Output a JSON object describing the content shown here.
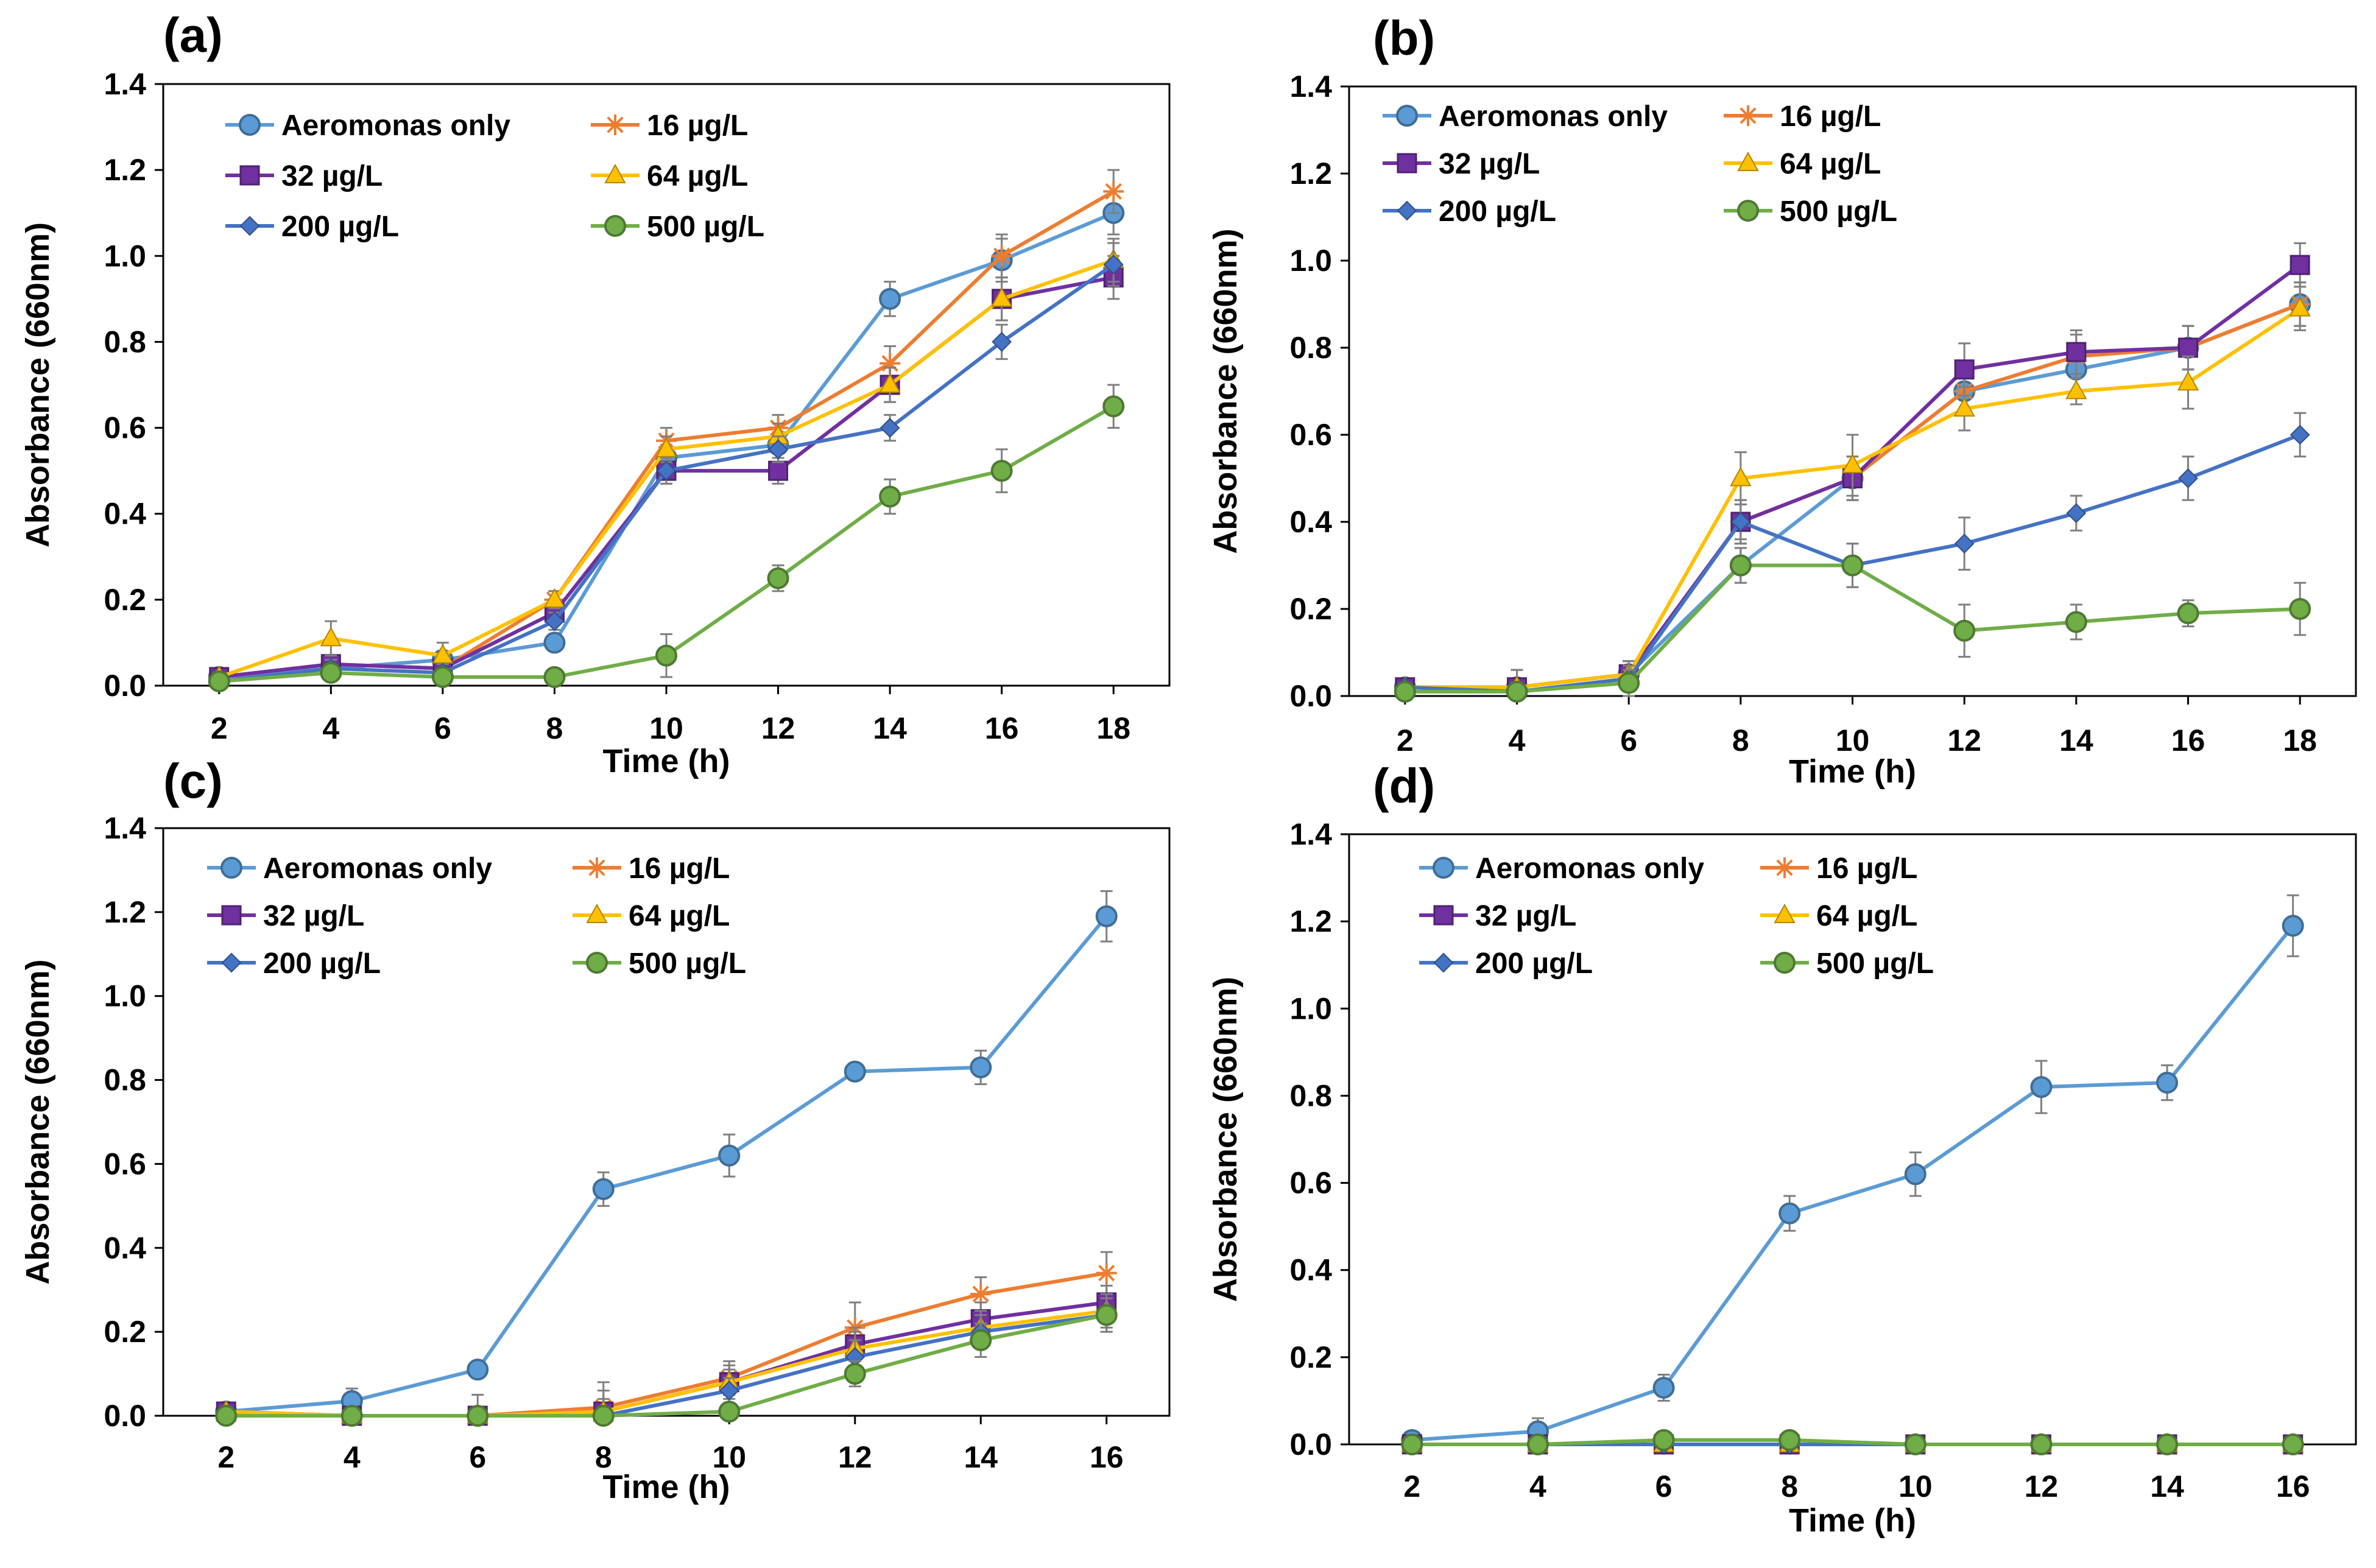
{
  "chart_data": [
    {
      "type": "line",
      "panel_label": "(a)",
      "xlabel": "Time (h)",
      "ylabel": "Absorbance (660nm)",
      "x": [
        2,
        4,
        6,
        8,
        10,
        12,
        14,
        16,
        18
      ],
      "x_ticks": [
        "2",
        "4",
        "6",
        "8",
        "10",
        "12",
        "14",
        "16",
        "18"
      ],
      "y_ticks": [
        "0.0",
        "0.2",
        "0.4",
        "0.6",
        "0.8",
        "1.0",
        "1.2",
        "1.4"
      ],
      "ylim": [
        0,
        1.4
      ],
      "series": [
        {
          "name": "Aeromonas only",
          "color": "#5B9BD5",
          "marker": "circle",
          "values": [
            0.02,
            0.04,
            0.06,
            0.1,
            0.53,
            0.56,
            0.9,
            0.99,
            1.1
          ],
          "errors": [
            0.01,
            0.02,
            0.02,
            0.02,
            0.03,
            0.03,
            0.04,
            0.05,
            0.05
          ]
        },
        {
          "name": "16 µg/L",
          "color": "#ED7D31",
          "marker": "star",
          "values": [
            0.02,
            0.05,
            0.04,
            0.2,
            0.57,
            0.6,
            0.75,
            1.0,
            1.15
          ],
          "errors": [
            0.01,
            0.02,
            0.02,
            0.02,
            0.03,
            0.03,
            0.04,
            0.05,
            0.05
          ]
        },
        {
          "name": "32 µg/L",
          "color": "#7030A0",
          "marker": "square",
          "values": [
            0.02,
            0.05,
            0.04,
            0.17,
            0.5,
            0.5,
            0.7,
            0.9,
            0.95
          ],
          "errors": [
            0.01,
            0.02,
            0.02,
            0.02,
            0.03,
            0.03,
            0.04,
            0.05,
            0.05
          ]
        },
        {
          "name": "64 µg/L",
          "color": "#FFC000",
          "marker": "triangle",
          "values": [
            0.02,
            0.11,
            0.07,
            0.2,
            0.55,
            0.58,
            0.7,
            0.9,
            0.99
          ],
          "errors": [
            0.01,
            0.04,
            0.03,
            0.02,
            0.03,
            0.03,
            0.04,
            0.05,
            0.05
          ]
        },
        {
          "name": "200 µg/L",
          "color": "#4472C4",
          "marker": "diamond",
          "values": [
            0.01,
            0.04,
            0.03,
            0.15,
            0.5,
            0.55,
            0.6,
            0.8,
            0.98
          ],
          "errors": [
            0.01,
            0.02,
            0.02,
            0.02,
            0.03,
            0.03,
            0.03,
            0.04,
            0.05
          ]
        },
        {
          "name": "500 µg/L",
          "color": "#70AD47",
          "marker": "circle",
          "values": [
            0.01,
            0.03,
            0.02,
            0.02,
            0.07,
            0.25,
            0.44,
            0.5,
            0.65
          ],
          "errors": [
            0.01,
            0.01,
            0.01,
            0.01,
            0.05,
            0.03,
            0.04,
            0.05,
            0.05
          ]
        }
      ]
    },
    {
      "type": "line",
      "panel_label": "(b)",
      "xlabel": "Time (h)",
      "ylabel": "Absorbance (660nm)",
      "x": [
        2,
        4,
        6,
        8,
        10,
        12,
        14,
        16,
        18
      ],
      "x_ticks": [
        "2",
        "4",
        "6",
        "8",
        "10",
        "12",
        "14",
        "16",
        "18"
      ],
      "y_ticks": [
        "0.0",
        "0.2",
        "0.4",
        "0.6",
        "0.8",
        "1.0",
        "1.2",
        "1.4"
      ],
      "ylim": [
        0,
        1.4
      ],
      "series": [
        {
          "name": "Aeromonas only",
          "color": "#5B9BD5",
          "marker": "circle",
          "values": [
            0.02,
            0.02,
            0.05,
            0.3,
            0.5,
            0.7,
            0.75,
            0.8,
            0.9
          ],
          "errors": [
            0.01,
            0.04,
            0.03,
            0.04,
            0.05,
            0.05,
            0.05,
            0.05,
            0.05
          ]
        },
        {
          "name": "16  µg/L",
          "color": "#ED7D31",
          "marker": "star",
          "values": [
            0.02,
            0.02,
            0.05,
            0.4,
            0.5,
            0.7,
            0.78,
            0.8,
            0.9
          ],
          "errors": [
            0.01,
            0.04,
            0.03,
            0.04,
            0.05,
            0.05,
            0.05,
            0.05,
            0.05
          ]
        },
        {
          "name": "32 µg/L",
          "color": "#7030A0",
          "marker": "square",
          "values": [
            0.02,
            0.02,
            0.05,
            0.4,
            0.5,
            0.75,
            0.79,
            0.8,
            0.99
          ],
          "errors": [
            0.01,
            0.04,
            0.03,
            0.05,
            0.05,
            0.06,
            0.05,
            0.05,
            0.05
          ]
        },
        {
          "name": "64 µg/L",
          "color": "#FFC000",
          "marker": "triangle",
          "values": [
            0.02,
            0.02,
            0.05,
            0.5,
            0.53,
            0.66,
            0.7,
            0.72,
            0.89
          ],
          "errors": [
            0.01,
            0.04,
            0.03,
            0.06,
            0.07,
            0.05,
            0.03,
            0.06,
            0.05
          ]
        },
        {
          "name": "200 µg/L",
          "color": "#4472C4",
          "marker": "diamond",
          "values": [
            0.02,
            0.01,
            0.04,
            0.4,
            0.3,
            0.35,
            0.42,
            0.5,
            0.6
          ],
          "errors": [
            0.01,
            0.02,
            0.03,
            0.05,
            0.05,
            0.06,
            0.04,
            0.05,
            0.05
          ]
        },
        {
          "name": "500 µg/L",
          "color": "#70AD47",
          "marker": "circle",
          "values": [
            0.01,
            0.01,
            0.03,
            0.3,
            0.3,
            0.15,
            0.17,
            0.19,
            0.2
          ],
          "errors": [
            0.01,
            0.02,
            0.03,
            0.04,
            0.05,
            0.06,
            0.04,
            0.03,
            0.06
          ]
        }
      ]
    },
    {
      "type": "line",
      "panel_label": "(c)",
      "xlabel": "Time (h)",
      "ylabel": "Absorbance (660nm)",
      "x": [
        2,
        4,
        6,
        8,
        10,
        12,
        14,
        16
      ],
      "x_ticks": [
        "2",
        "4",
        "6",
        "8",
        "10",
        "12",
        "14",
        "16"
      ],
      "y_ticks": [
        "0.0",
        "0.2",
        "0.4",
        "0.6",
        "0.8",
        "1.0",
        "1.2",
        "1.4"
      ],
      "ylim": [
        0,
        1.4
      ],
      "series": [
        {
          "name": "Aeromonas only",
          "color": "#5B9BD5",
          "marker": "circle",
          "values": [
            0.01,
            0.035,
            0.11,
            0.54,
            0.62,
            0.82,
            0.83,
            1.19
          ],
          "errors": [
            0.01,
            0.03,
            0.02,
            0.04,
            0.05,
            0.01,
            0.04,
            0.06
          ]
        },
        {
          "name": "16 µg/L",
          "color": "#ED7D31",
          "marker": "star",
          "values": [
            0.01,
            0.0,
            0.0,
            0.02,
            0.09,
            0.21,
            0.29,
            0.34
          ],
          "errors": [
            0.01,
            0.01,
            0.05,
            0.06,
            0.04,
            0.06,
            0.04,
            0.05
          ]
        },
        {
          "name": "32 µg/L",
          "color": "#7030A0",
          "marker": "square",
          "values": [
            0.01,
            0.0,
            0.0,
            0.01,
            0.08,
            0.17,
            0.23,
            0.27
          ],
          "errors": [
            0.01,
            0.01,
            0.02,
            0.05,
            0.04,
            0.04,
            0.04,
            0.04
          ]
        },
        {
          "name": "64 µg/L",
          "color": "#FFC000",
          "marker": "triangle",
          "values": [
            0.01,
            0.0,
            0.0,
            0.01,
            0.08,
            0.16,
            0.21,
            0.25
          ],
          "errors": [
            0.01,
            0.01,
            0.01,
            0.03,
            0.03,
            0.04,
            0.04,
            0.04
          ]
        },
        {
          "name": "200 µg/L",
          "color": "#4472C4",
          "marker": "diamond",
          "values": [
            0.0,
            0.0,
            0.0,
            0.0,
            0.06,
            0.14,
            0.2,
            0.24
          ],
          "errors": [
            0.01,
            0.01,
            0.01,
            0.01,
            0.03,
            0.04,
            0.04,
            0.04
          ]
        },
        {
          "name": "500 µg/L",
          "color": "#70AD47",
          "marker": "circle",
          "values": [
            0.0,
            0.0,
            0.0,
            0.0,
            0.01,
            0.1,
            0.18,
            0.24
          ],
          "errors": [
            0.01,
            0.01,
            0.01,
            0.01,
            0.02,
            0.03,
            0.04,
            0.04
          ]
        }
      ]
    },
    {
      "type": "line",
      "panel_label": "(d)",
      "xlabel": "Time (h)",
      "ylabel": "Absorbance (660nm)",
      "x": [
        2,
        4,
        6,
        8,
        10,
        12,
        14,
        16
      ],
      "x_ticks": [
        "2",
        "4",
        "6",
        "8",
        "10",
        "12",
        "14",
        "16"
      ],
      "y_ticks": [
        "0.0",
        "0.2",
        "0.4",
        "0.6",
        "0.8",
        "1.0",
        "1.2",
        "1.4"
      ],
      "ylim": [
        0,
        1.4
      ],
      "series": [
        {
          "name": "Aeromonas only",
          "color": "#5B9BD5",
          "marker": "circle",
          "values": [
            0.01,
            0.03,
            0.13,
            0.53,
            0.62,
            0.82,
            0.83,
            1.19
          ],
          "errors": [
            0.01,
            0.03,
            0.03,
            0.04,
            0.05,
            0.06,
            0.04,
            0.07
          ]
        },
        {
          "name": "16 µg/L",
          "color": "#ED7D31",
          "marker": "star",
          "values": [
            0.0,
            0.0,
            0.0,
            0.0,
            0.0,
            0.0,
            0.0,
            0.0
          ],
          "errors": [
            0.01,
            0.01,
            0.01,
            0.01,
            0.01,
            0.01,
            0.01,
            0.01
          ]
        },
        {
          "name": "32 µg/L",
          "color": "#7030A0",
          "marker": "square",
          "values": [
            0.0,
            0.0,
            0.0,
            0.0,
            0.0,
            0.0,
            0.0,
            0.0
          ],
          "errors": [
            0.01,
            0.01,
            0.01,
            0.01,
            0.01,
            0.01,
            0.01,
            0.01
          ]
        },
        {
          "name": "64 µg/L",
          "color": "#FFC000",
          "marker": "triangle",
          "values": [
            0.0,
            0.0,
            0.0,
            0.0,
            0.0,
            0.0,
            0.0,
            0.0
          ],
          "errors": [
            0.01,
            0.01,
            0.01,
            0.01,
            0.01,
            0.01,
            0.01,
            0.01
          ]
        },
        {
          "name": "200 µg/L",
          "color": "#4472C4",
          "marker": "diamond",
          "values": [
            0.0,
            0.0,
            0.0,
            0.0,
            0.0,
            0.0,
            0.0,
            0.0
          ],
          "errors": [
            0.01,
            0.01,
            0.01,
            0.01,
            0.01,
            0.01,
            0.01,
            0.01
          ]
        },
        {
          "name": "500 µg/L",
          "color": "#70AD47",
          "marker": "circle",
          "values": [
            0.0,
            0.0,
            0.01,
            0.01,
            0.0,
            0.0,
            0.0,
            0.0
          ],
          "errors": [
            0.01,
            0.01,
            0.01,
            0.01,
            0.01,
            0.01,
            0.01,
            0.01
          ]
        }
      ]
    }
  ]
}
